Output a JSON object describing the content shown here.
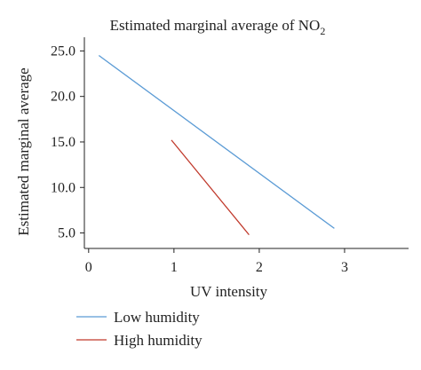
{
  "chart_data": {
    "type": "line",
    "title": "Estimated marginal average of NO",
    "title_subscript": "2",
    "xlabel": "UV intensity",
    "ylabel": "Estimated marginal average",
    "xlim": [
      -0.05,
      3.75
    ],
    "ylim": [
      3.3,
      26.5
    ],
    "x_ticks": [
      0,
      1,
      2,
      3
    ],
    "x_tick_labels": [
      "0",
      "1",
      "2",
      "3"
    ],
    "y_ticks": [
      5.0,
      10.0,
      15.0,
      20.0,
      25.0
    ],
    "y_tick_labels": [
      "5.0",
      "10.0",
      "15.0",
      "20.0",
      "25.0"
    ],
    "grid": false,
    "legend_position": "bottom-left",
    "series": [
      {
        "name": "Low humidity",
        "color": "#5b9bd5",
        "x": [
          0.12,
          2.88
        ],
        "y": [
          24.5,
          5.5
        ]
      },
      {
        "name": "High humidity",
        "color": "#c0392b",
        "x": [
          0.97,
          1.88
        ],
        "y": [
          15.2,
          4.8
        ]
      }
    ]
  }
}
